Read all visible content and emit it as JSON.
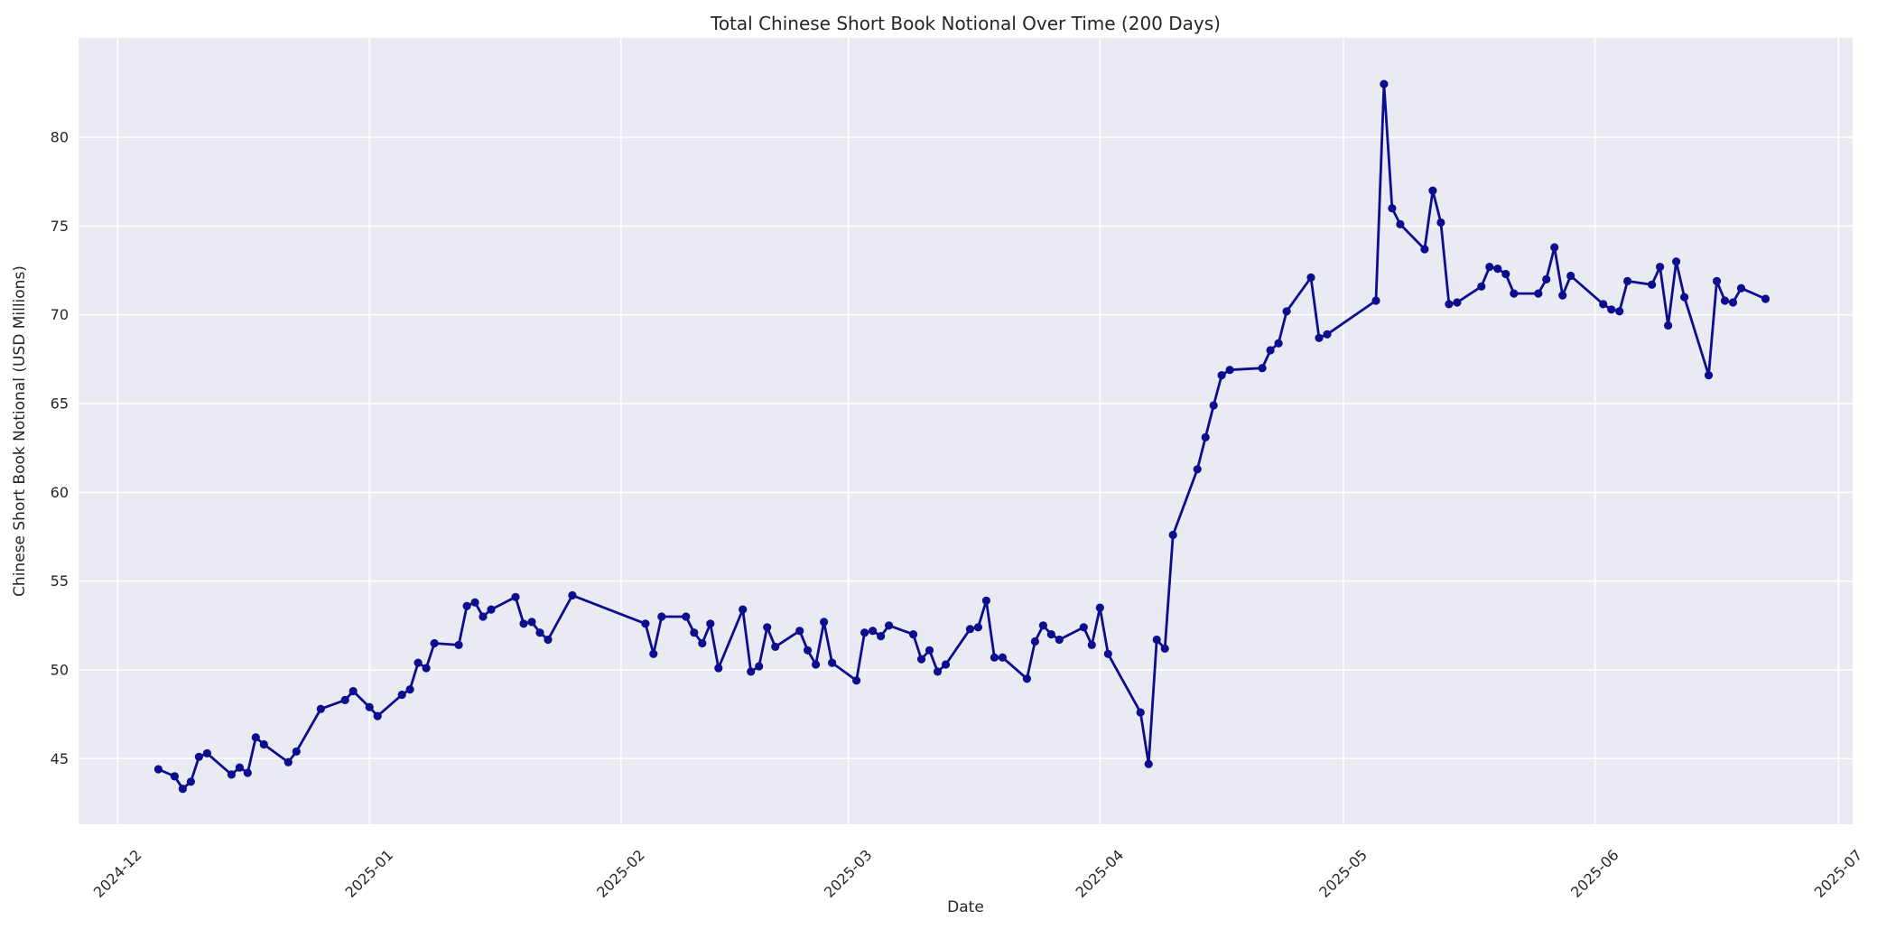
{
  "chart_data": {
    "type": "line",
    "title": "Total Chinese Short Book Notional Over Time (200 Days)",
    "xlabel": "Date",
    "ylabel": "Chinese Short Book Notional (USD Millions)",
    "grid": true,
    "legend_position": "none",
    "ylim": [
      41.3,
      85.6
    ],
    "y_ticks": [
      45,
      50,
      55,
      60,
      65,
      70,
      75,
      80
    ],
    "x_ticks": [
      "2024-12-01",
      "2025-01-01",
      "2025-02-01",
      "2025-03-01",
      "2025-04-01",
      "2025-05-01",
      "2025-06-01",
      "2025-07-01"
    ],
    "x_tick_labels": [
      "2024-12",
      "2025-01",
      "2025-02",
      "2025-03",
      "2025-04",
      "2025-05",
      "2025-06",
      "2025-07"
    ],
    "colors": {
      "line": "#0D0D8F",
      "marker": "#0D0D8F",
      "axes_background": "#EAEAF2",
      "figure_background": "#FFFFFF",
      "gridline": "#FFFFFF",
      "text": "#262626"
    },
    "series": [
      {
        "name": "Total Chinese Short Book Notional",
        "points": [
          [
            "2024-12-06",
            44.4
          ],
          [
            "2024-12-08",
            44.0
          ],
          [
            "2024-12-09",
            43.3
          ],
          [
            "2024-12-10",
            43.7
          ],
          [
            "2024-12-11",
            45.1
          ],
          [
            "2024-12-12",
            45.3
          ],
          [
            "2024-12-15",
            44.1
          ],
          [
            "2024-12-16",
            44.5
          ],
          [
            "2024-12-17",
            44.2
          ],
          [
            "2024-12-18",
            46.2
          ],
          [
            "2024-12-19",
            45.8
          ],
          [
            "2024-12-22",
            44.8
          ],
          [
            "2024-12-23",
            45.4
          ],
          [
            "2024-12-26",
            47.8
          ],
          [
            "2024-12-29",
            48.3
          ],
          [
            "2024-12-30",
            48.8
          ],
          [
            "2025-01-01",
            47.9
          ],
          [
            "2025-01-02",
            47.4
          ],
          [
            "2025-01-05",
            48.6
          ],
          [
            "2025-01-06",
            48.9
          ],
          [
            "2025-01-07",
            50.4
          ],
          [
            "2025-01-08",
            50.1
          ],
          [
            "2025-01-09",
            51.5
          ],
          [
            "2025-01-12",
            51.4
          ],
          [
            "2025-01-13",
            53.6
          ],
          [
            "2025-01-14",
            53.8
          ],
          [
            "2025-01-15",
            53.0
          ],
          [
            "2025-01-16",
            53.4
          ],
          [
            "2025-01-19",
            54.1
          ],
          [
            "2025-01-20",
            52.6
          ],
          [
            "2025-01-21",
            52.7
          ],
          [
            "2025-01-22",
            52.1
          ],
          [
            "2025-01-23",
            51.7
          ],
          [
            "2025-01-26",
            54.2
          ],
          [
            "2025-02-04",
            52.6
          ],
          [
            "2025-02-05",
            50.9
          ],
          [
            "2025-02-06",
            53.0
          ],
          [
            "2025-02-09",
            53.0
          ],
          [
            "2025-02-10",
            52.1
          ],
          [
            "2025-02-11",
            51.5
          ],
          [
            "2025-02-12",
            52.6
          ],
          [
            "2025-02-13",
            50.1
          ],
          [
            "2025-02-16",
            53.4
          ],
          [
            "2025-02-17",
            49.9
          ],
          [
            "2025-02-18",
            50.2
          ],
          [
            "2025-02-19",
            52.4
          ],
          [
            "2025-02-20",
            51.3
          ],
          [
            "2025-02-23",
            52.2
          ],
          [
            "2025-02-24",
            51.1
          ],
          [
            "2025-02-25",
            50.3
          ],
          [
            "2025-02-26",
            52.7
          ],
          [
            "2025-02-27",
            50.4
          ],
          [
            "2025-03-02",
            49.4
          ],
          [
            "2025-03-03",
            52.1
          ],
          [
            "2025-03-04",
            52.2
          ],
          [
            "2025-03-05",
            51.9
          ],
          [
            "2025-03-06",
            52.5
          ],
          [
            "2025-03-09",
            52.0
          ],
          [
            "2025-03-10",
            50.6
          ],
          [
            "2025-03-11",
            51.1
          ],
          [
            "2025-03-12",
            49.9
          ],
          [
            "2025-03-13",
            50.3
          ],
          [
            "2025-03-16",
            52.3
          ],
          [
            "2025-03-17",
            52.4
          ],
          [
            "2025-03-18",
            53.9
          ],
          [
            "2025-03-19",
            50.7
          ],
          [
            "2025-03-20",
            50.7
          ],
          [
            "2025-03-23",
            49.5
          ],
          [
            "2025-03-24",
            51.6
          ],
          [
            "2025-03-25",
            52.5
          ],
          [
            "2025-03-26",
            52.0
          ],
          [
            "2025-03-27",
            51.7
          ],
          [
            "2025-03-30",
            52.4
          ],
          [
            "2025-03-31",
            51.4
          ],
          [
            "2025-04-01",
            53.5
          ],
          [
            "2025-04-02",
            50.9
          ],
          [
            "2025-04-06",
            47.6
          ],
          [
            "2025-04-07",
            44.7
          ],
          [
            "2025-04-08",
            51.7
          ],
          [
            "2025-04-09",
            51.2
          ],
          [
            "2025-04-10",
            57.6
          ],
          [
            "2025-04-13",
            61.3
          ],
          [
            "2025-04-14",
            63.1
          ],
          [
            "2025-04-15",
            64.9
          ],
          [
            "2025-04-16",
            66.6
          ],
          [
            "2025-04-17",
            66.9
          ],
          [
            "2025-04-21",
            67.0
          ],
          [
            "2025-04-22",
            68.0
          ],
          [
            "2025-04-23",
            68.4
          ],
          [
            "2025-04-24",
            70.2
          ],
          [
            "2025-04-27",
            72.1
          ],
          [
            "2025-04-28",
            68.7
          ],
          [
            "2025-04-29",
            68.9
          ],
          [
            "2025-05-05",
            70.8
          ],
          [
            "2025-05-06",
            83.0
          ],
          [
            "2025-05-07",
            76.0
          ],
          [
            "2025-05-08",
            75.1
          ],
          [
            "2025-05-11",
            73.7
          ],
          [
            "2025-05-12",
            77.0
          ],
          [
            "2025-05-13",
            75.2
          ],
          [
            "2025-05-14",
            70.6
          ],
          [
            "2025-05-15",
            70.7
          ],
          [
            "2025-05-18",
            71.6
          ],
          [
            "2025-05-19",
            72.7
          ],
          [
            "2025-05-20",
            72.6
          ],
          [
            "2025-05-21",
            72.3
          ],
          [
            "2025-05-22",
            71.2
          ],
          [
            "2025-05-25",
            71.2
          ],
          [
            "2025-05-26",
            72.0
          ],
          [
            "2025-05-27",
            73.8
          ],
          [
            "2025-05-28",
            71.1
          ],
          [
            "2025-05-29",
            72.2
          ],
          [
            "2025-06-02",
            70.6
          ],
          [
            "2025-06-03",
            70.3
          ],
          [
            "2025-06-04",
            70.2
          ],
          [
            "2025-06-05",
            71.9
          ],
          [
            "2025-06-08",
            71.7
          ],
          [
            "2025-06-09",
            72.7
          ],
          [
            "2025-06-10",
            69.4
          ],
          [
            "2025-06-11",
            73.0
          ],
          [
            "2025-06-12",
            71.0
          ],
          [
            "2025-06-15",
            66.6
          ],
          [
            "2025-06-16",
            71.9
          ],
          [
            "2025-06-17",
            70.8
          ],
          [
            "2025-06-18",
            70.7
          ],
          [
            "2025-06-19",
            71.5
          ],
          [
            "2025-06-22",
            70.9
          ]
        ]
      }
    ]
  }
}
